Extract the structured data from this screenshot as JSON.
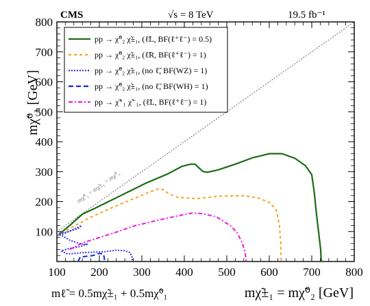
{
  "header": {
    "experiment": "CMS",
    "energy": "√s = 8 TeV",
    "lumi": "19.5 fb⁻¹"
  },
  "chart_data": {
    "type": "line",
    "xlim": [
      100,
      800
    ],
    "ylim": [
      0,
      800
    ],
    "x_ticks": [
      "100",
      "200",
      "300",
      "400",
      "500",
      "600",
      "700",
      "800"
    ],
    "y_ticks": [
      "0",
      "100",
      "200",
      "300",
      "400",
      "500",
      "600",
      "700",
      "800"
    ],
    "xlabel": "mχ̃±₁ = mχ̃⁰₂ [GeV]",
    "xlabel_sub": "mℓ̃ = 0.5mχ̃±₁ + 0.5mχ̃⁰₁",
    "ylabel": "mχ̃⁰₁ [GeV]",
    "diagonal_label": "mχ̃⁰₁ = mχ̃±₁ > mχ̃⁰₁",
    "grid": false,
    "legend_position": "top-left",
    "series": [
      {
        "name": "pp → χ̃⁰₂ χ̃±₁, (ℓ̃L, BF(ℓ⁺ℓ⁻) = 0.5)",
        "color": "#1a6b12",
        "dash": "solid",
        "points": [
          [
            100,
            85
          ],
          [
            130,
            120
          ],
          [
            160,
            158
          ],
          [
            190,
            178
          ],
          [
            250,
            220
          ],
          [
            310,
            262
          ],
          [
            360,
            292
          ],
          [
            395,
            318
          ],
          [
            415,
            325
          ],
          [
            425,
            325
          ],
          [
            438,
            308
          ],
          [
            445,
            300
          ],
          [
            455,
            298
          ],
          [
            480,
            306
          ],
          [
            520,
            325
          ],
          [
            560,
            346
          ],
          [
            600,
            360
          ],
          [
            630,
            360
          ],
          [
            660,
            345
          ],
          [
            685,
            320
          ],
          [
            700,
            290
          ],
          [
            706,
            230
          ],
          [
            711,
            160
          ],
          [
            716,
            100
          ],
          [
            721,
            40
          ],
          [
            722,
            10
          ],
          [
            723,
            0
          ]
        ]
      },
      {
        "name": "pp → χ̃⁰₂ χ̃±₁, (ℓ̃R, BF(ℓ⁺ℓ⁻) = 1)",
        "color": "#f5a21f",
        "dash": "4,4",
        "points": [
          [
            100,
            85
          ],
          [
            140,
            118
          ],
          [
            180,
            148
          ],
          [
            230,
            180
          ],
          [
            290,
            215
          ],
          [
            320,
            233
          ],
          [
            340,
            243
          ],
          [
            350,
            240
          ],
          [
            365,
            225
          ],
          [
            385,
            214
          ],
          [
            430,
            210
          ],
          [
            480,
            218
          ],
          [
            540,
            220
          ],
          [
            575,
            212
          ],
          [
            603,
            195
          ],
          [
            617,
            170
          ],
          [
            624,
            120
          ],
          [
            627,
            60
          ],
          [
            628,
            0
          ]
        ]
      },
      {
        "name": "pp → χ̃⁰₂ χ̃±₁, (no ℓ̃, BF(WZ) = 1)",
        "color": "#3b32dd",
        "dash": "2,2",
        "points": [
          [
            100,
            85
          ],
          [
            115,
            92
          ],
          [
            140,
            108
          ],
          [
            158,
            120
          ],
          [
            150,
            110
          ],
          [
            122,
            98
          ],
          [
            105,
            94
          ],
          [
            110,
            88
          ],
          [
            132,
            70
          ],
          [
            158,
            58
          ],
          [
            172,
            58
          ],
          [
            155,
            50
          ],
          [
            125,
            42
          ],
          [
            110,
            35
          ],
          [
            125,
            25
          ],
          [
            165,
            30
          ],
          [
            215,
            33
          ],
          [
            240,
            38
          ],
          [
            260,
            36
          ],
          [
            272,
            30
          ],
          [
            277,
            15
          ],
          [
            278,
            0
          ]
        ]
      },
      {
        "name": "pp → χ̃⁰₂ χ̃±₁, (no ℓ̃, BF(WH) = 1)",
        "color": "#1522e8",
        "dash": "7,4",
        "points": [
          [
            150,
            0
          ],
          [
            155,
            15
          ],
          [
            185,
            20
          ],
          [
            200,
            27
          ],
          [
            210,
            25
          ],
          [
            212,
            8
          ],
          [
            212,
            0
          ]
        ]
      },
      {
        "name": "pp → χ̃⁺₁ χ̃⁻₁, (ℓ̃L, BF(ℓ⁺ℓ⁻) = 1)",
        "color": "#ee18e6",
        "dash": "6,3,2,3",
        "points": [
          [
            130,
            40
          ],
          [
            160,
            62
          ],
          [
            200,
            80
          ],
          [
            240,
            98
          ],
          [
            280,
            118
          ],
          [
            320,
            132
          ],
          [
            360,
            145
          ],
          [
            400,
            157
          ],
          [
            420,
            162
          ],
          [
            440,
            160
          ],
          [
            475,
            150
          ],
          [
            510,
            118
          ],
          [
            525,
            95
          ],
          [
            537,
            60
          ],
          [
            543,
            30
          ],
          [
            546,
            0
          ]
        ]
      }
    ]
  }
}
